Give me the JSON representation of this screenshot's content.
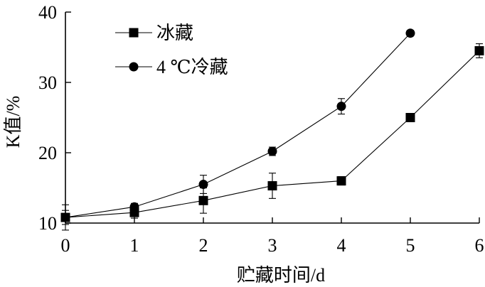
{
  "chart_data": {
    "type": "line",
    "xlabel": "贮藏时间/d",
    "ylabel": "K值/%",
    "xlim": [
      0,
      6
    ],
    "ylim": [
      10,
      40
    ],
    "x_ticks": [
      0,
      1,
      2,
      3,
      4,
      5,
      6
    ],
    "y_ticks": [
      10,
      20,
      30,
      40
    ],
    "grid": false,
    "legend_position": "top-left",
    "series": [
      {
        "name": "冰藏",
        "marker": "square",
        "x": [
          0,
          1,
          2,
          3,
          4,
          5,
          6
        ],
        "y": [
          10.8,
          11.5,
          13.2,
          15.3,
          16.0,
          25.0,
          34.5
        ],
        "err": [
          1.8,
          0.8,
          1.8,
          1.8,
          0.6,
          0.4,
          1.0
        ]
      },
      {
        "name": "4 ℃冷藏",
        "marker": "circle",
        "x": [
          0,
          1,
          2,
          3,
          4,
          5
        ],
        "y": [
          10.8,
          12.3,
          15.5,
          20.2,
          26.6,
          37.0
        ],
        "err": [
          1.0,
          0.5,
          1.3,
          0.6,
          1.1,
          0.4
        ]
      }
    ]
  }
}
